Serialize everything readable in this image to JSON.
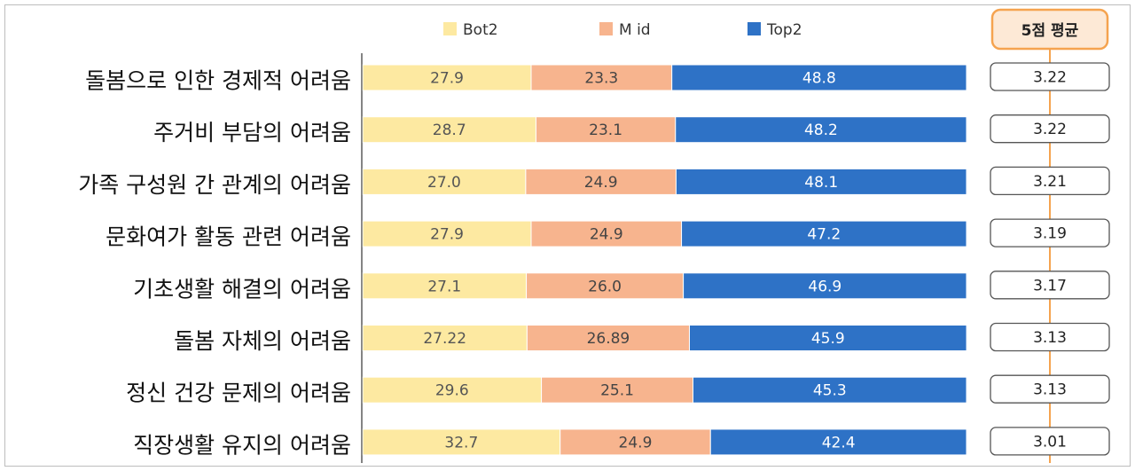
{
  "chart_data": {
    "type": "bar",
    "orientation": "horizontal",
    "stacked": true,
    "categories": [
      "돌봄으로 인한 경제적 어려움",
      "주거비 부담의 어려움",
      "가족 구성원 간 관계의 어려움",
      "문화여가 활동 관련 어려움",
      "기초생활 해결의 어려움",
      "돌봄 자체의 어려움",
      "정신 건강 문제의 어려움",
      "직장생활 유지의 어려움"
    ],
    "series": [
      {
        "name": "Bot2",
        "color": "#fde9a1",
        "label_color": "#555555",
        "values": [
          27.9,
          28.7,
          27.0,
          27.9,
          27.1,
          27.22,
          29.6,
          32.7
        ],
        "labels": [
          "27.9",
          "28.7",
          "27.0",
          "27.9",
          "27.1",
          "27.22",
          "29.6",
          "32.7"
        ]
      },
      {
        "name": "M id",
        "color": "#f7b48e",
        "label_color": "#444444",
        "values": [
          23.3,
          23.1,
          24.9,
          24.9,
          26.0,
          26.89,
          25.1,
          24.9
        ],
        "labels": [
          "23.3",
          "23.1",
          "24.9",
          "24.9",
          "26.0",
          "26.89",
          "25.1",
          "24.9"
        ]
      },
      {
        "name": "Top2",
        "color": "#2e72c6",
        "label_color": "#ffffff",
        "values": [
          48.8,
          48.2,
          48.1,
          47.2,
          46.9,
          45.9,
          45.3,
          42.4
        ],
        "labels": [
          "48.8",
          "48.2",
          "48.1",
          "47.2",
          "46.9",
          "45.9",
          "45.3",
          "42.4"
        ]
      }
    ],
    "legend_position": "top",
    "xlim": [
      0,
      100
    ],
    "grid": false,
    "average": {
      "header": "5점 평균",
      "header_color": "#f5a34f",
      "values": [
        "3.22",
        "3.22",
        "3.21",
        "3.19",
        "3.17",
        "3.13",
        "3.13",
        "3.01"
      ]
    }
  }
}
